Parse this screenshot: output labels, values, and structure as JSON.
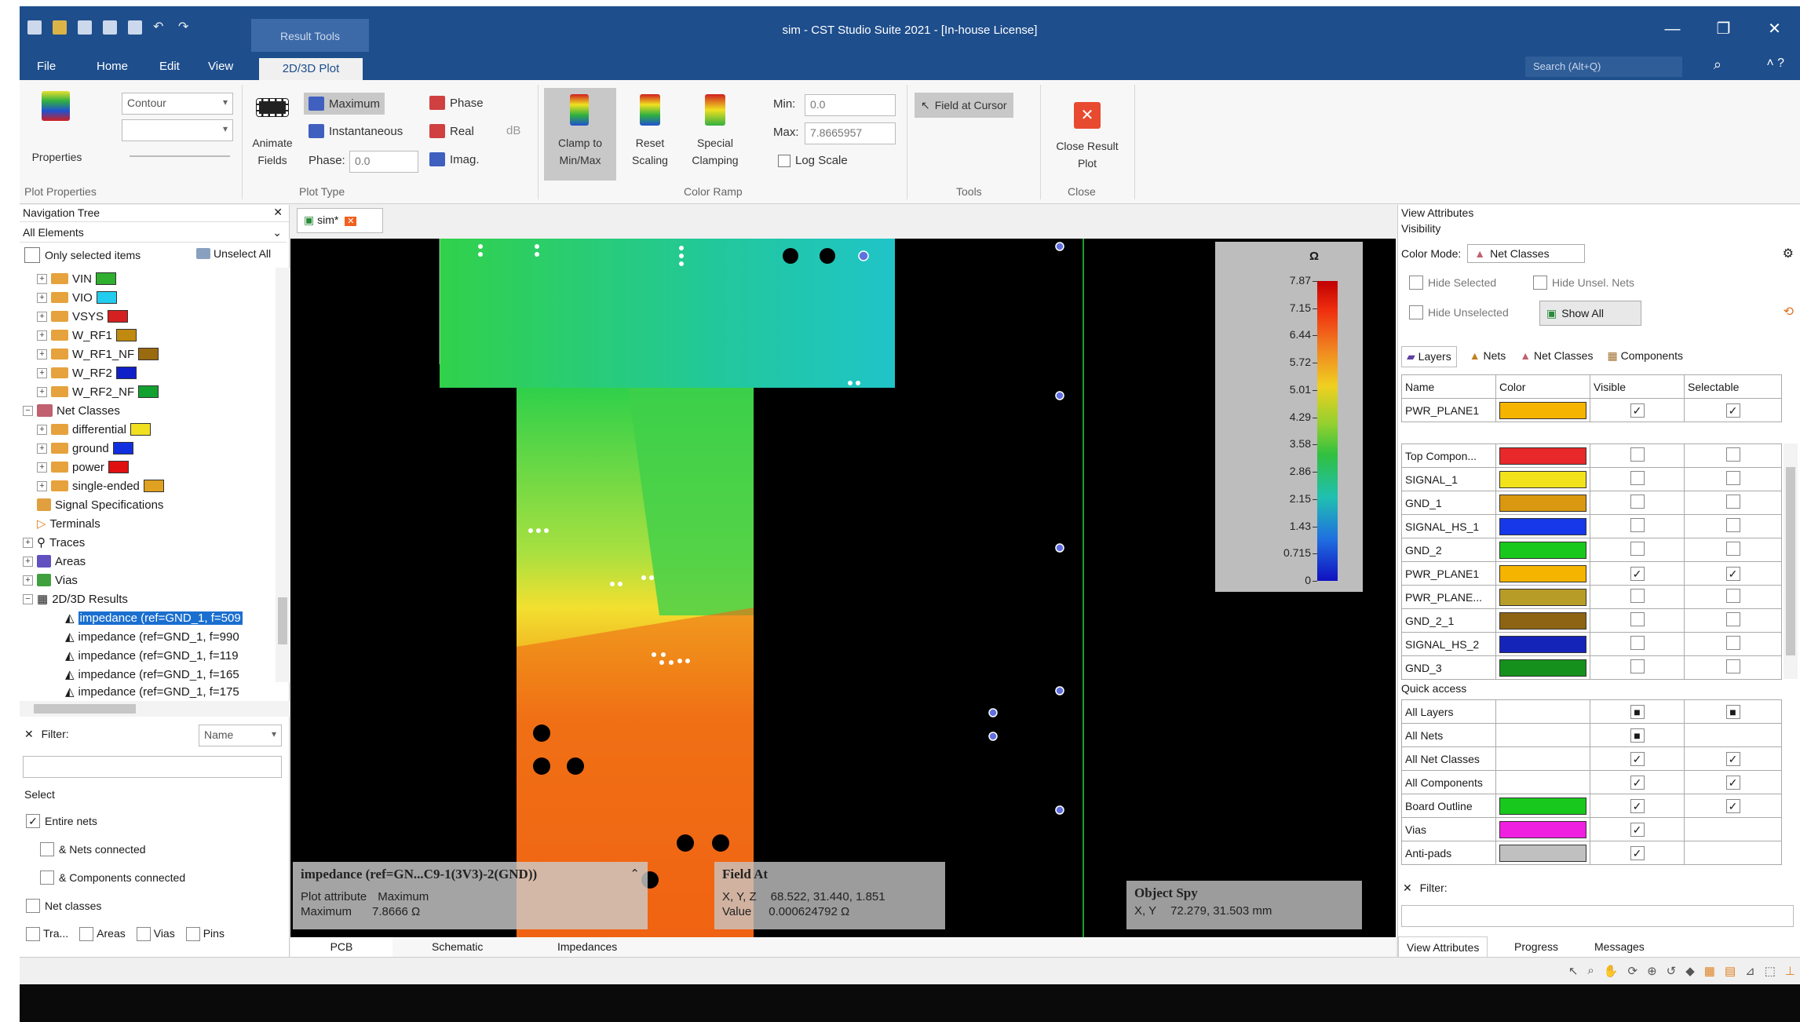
{
  "window": {
    "title": "sim - CST Studio Suite 2021 - [In-house License]",
    "context_tab": "Result Tools",
    "controls": [
      "—",
      "❐",
      "✕"
    ]
  },
  "menu": {
    "items": [
      "File",
      "Home",
      "Edit",
      "View"
    ],
    "active_tab": "2D/3D Plot",
    "search_placeholder": "Search (Alt+Q)"
  },
  "ribbon": {
    "properties": "Properties",
    "contour_select": "Contour",
    "animate_fields": [
      "Animate",
      "Fields"
    ],
    "maximum": "Maximum",
    "instantaneous": "Instantaneous",
    "phase_label": "Phase:",
    "phase_value": "0.0",
    "phase": "Phase",
    "real": "Real",
    "imag": "Imag.",
    "db": "dB",
    "clamp": [
      "Clamp to",
      "Min/Max"
    ],
    "reset": [
      "Reset",
      "Scaling"
    ],
    "special": [
      "Special",
      "Clamping"
    ],
    "min_label": "Min:",
    "min_value": "0.0",
    "max_label": "Max:",
    "max_value": "7.8665957",
    "log_scale": "Log Scale",
    "field_at_cursor": "Field at Cursor",
    "close_result": [
      "Close Result",
      "Plot"
    ],
    "groups": {
      "plot_properties": "Plot Properties",
      "plot_type": "Plot Type",
      "color_ramp": "Color Ramp",
      "tools": "Tools",
      "close": "Close"
    }
  },
  "nav": {
    "title": "Navigation Tree",
    "dropdown": "All Elements",
    "only_selected": "Only selected items",
    "unselect_all": "Unselect All",
    "items": [
      {
        "label": "VIN",
        "color": "#2fae2f"
      },
      {
        "label": "VIO",
        "color": "#22ccee"
      },
      {
        "label": "VSYS",
        "color": "#d42020"
      },
      {
        "label": "W_RF1",
        "color": "#c08a10"
      },
      {
        "label": "W_RF1_NF",
        "color": "#9a6a10"
      },
      {
        "label": "W_RF2",
        "color": "#1020c8"
      },
      {
        "label": "W_RF2_NF",
        "color": "#12a030"
      }
    ],
    "net_classes": "Net Classes",
    "net_class_items": [
      {
        "label": "differential",
        "color": "#f0e020"
      },
      {
        "label": "ground",
        "color": "#1030e0"
      },
      {
        "label": "power",
        "color": "#e01010"
      },
      {
        "label": "single-ended",
        "color": "#e0a020"
      }
    ],
    "others": [
      "Signal Specifications",
      "Terminals",
      "Traces",
      "Areas",
      "Vias",
      "2D/3D Results"
    ],
    "results": [
      "impedance (ref=GND_1, f=509",
      "impedance (ref=GND_1, f=990",
      "impedance (ref=GND_1, f=119",
      "impedance (ref=GND_1, f=165",
      "impedance (ref=GND_1, f=175"
    ],
    "filter_label": "Filter:",
    "filter_mode": "Name",
    "select_label": "Select",
    "entire_nets": "Entire nets",
    "nets_connected": "& Nets connected",
    "components_connected": "& Components connected",
    "net_classes_chk": "Net classes",
    "bottom_checks": [
      "Tra...",
      "Areas",
      "Vias",
      "Pins"
    ]
  },
  "doc": {
    "tab": "sim*",
    "bottom_tabs": [
      "PCB",
      "Schematic",
      "Impedances"
    ]
  },
  "colorbar": {
    "unit": "Ω",
    "ticks": [
      "7.87",
      "7.15",
      "6.44",
      "5.72",
      "5.01",
      "4.29",
      "3.58",
      "2.86",
      "2.15",
      "1.43",
      "0.715",
      "0"
    ]
  },
  "info": {
    "impedance_title": "impedance (ref=GN...C9-1(3V3)-2(GND))",
    "plot_attribute_label": "Plot attribute",
    "plot_attribute_value": "Maximum",
    "maximum_label": "Maximum",
    "maximum_value": "7.8666 Ω",
    "field_at_title": "Field At",
    "xyz_label": "X, Y, Z",
    "xyz_value": "68.522,  31.440,   1.851",
    "value_label": "Value",
    "value_value": "0.000624792 Ω",
    "object_spy_title": "Object Spy",
    "xy_label": "X, Y",
    "xy_value": "72.279,  31.503 mm"
  },
  "view_attributes": {
    "title": "View Attributes",
    "visibility": "Visibility",
    "color_mode_label": "Color Mode:",
    "color_mode_value": "Net Classes",
    "hide_selected": "Hide Selected",
    "hide_unsel_nets": "Hide Unsel. Nets",
    "hide_unselected": "Hide Unselected",
    "show_all": "Show All",
    "tabs": [
      "Layers",
      "Nets",
      "Net Classes",
      "Components"
    ],
    "columns": [
      "Name",
      "Color",
      "Visible",
      "Selectable"
    ],
    "pinned": {
      "name": "PWR_PLANE1",
      "color": "#f5b400",
      "visible": true,
      "selectable": true
    },
    "layers": [
      {
        "name": "Top Compon...",
        "color": "#e8282a",
        "visible": false,
        "selectable": false
      },
      {
        "name": "SIGNAL_1",
        "color": "#f2e21c",
        "visible": false,
        "selectable": false
      },
      {
        "name": "GND_1",
        "color": "#d99810",
        "visible": false,
        "selectable": false
      },
      {
        "name": "SIGNAL_HS_1",
        "color": "#1638e8",
        "visible": false,
        "selectable": false
      },
      {
        "name": "GND_2",
        "color": "#18c81c",
        "visible": false,
        "selectable": false
      },
      {
        "name": "PWR_PLANE1",
        "color": "#f5b400",
        "visible": true,
        "selectable": true
      },
      {
        "name": "PWR_PLANE...",
        "color": "#b89c28",
        "visible": false,
        "selectable": false
      },
      {
        "name": "GND_2_1",
        "color": "#8c6414",
        "visible": false,
        "selectable": false
      },
      {
        "name": "SIGNAL_HS_2",
        "color": "#1424b8",
        "visible": false,
        "selectable": false
      },
      {
        "name": "GND_3",
        "color": "#16901c",
        "visible": false,
        "selectable": false
      }
    ],
    "quick_access": "Quick access",
    "quick": [
      {
        "name": "All Layers",
        "color": "",
        "visible": "■",
        "selectable": "■"
      },
      {
        "name": "All Nets",
        "color": "",
        "visible": "■",
        "selectable": ""
      },
      {
        "name": "All Net Classes",
        "color": "",
        "visible": "✓",
        "selectable": "✓"
      },
      {
        "name": "All Components",
        "color": "",
        "visible": "✓",
        "selectable": "✓"
      },
      {
        "name": "Board Outline",
        "color": "#18c81c",
        "visible": "✓",
        "selectable": "✓"
      },
      {
        "name": "Vias",
        "color": "#f020e0",
        "visible": "✓",
        "selectable": ""
      },
      {
        "name": "Anti-pads",
        "color": "#c0c0c0",
        "visible": "✓",
        "selectable": ""
      }
    ],
    "filter_label": "Filter:",
    "bottom_tabs": [
      "View Attributes",
      "Progress",
      "Messages"
    ]
  }
}
